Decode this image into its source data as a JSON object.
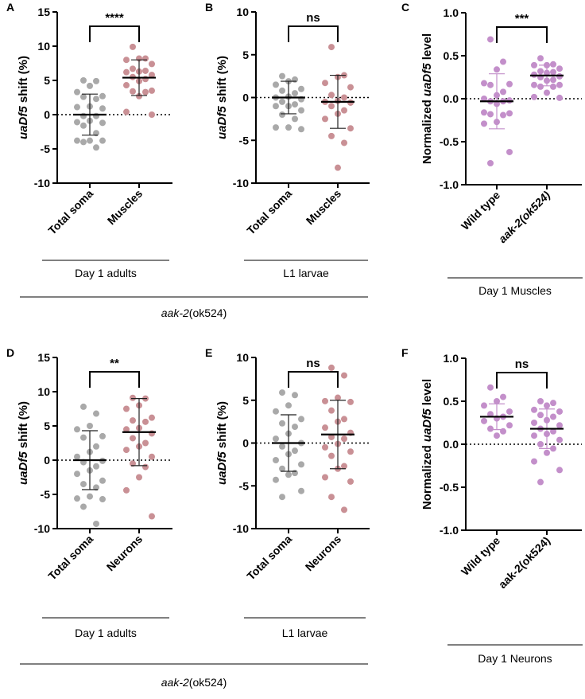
{
  "colors": {
    "gray": "#a9a9a9",
    "rose": "#c99095",
    "purple": "#c38fca",
    "axis": "#000000"
  },
  "group_labels": {
    "top_a": "Day 1 adults",
    "top_b": "L1 larvae",
    "top_c": "Day 1 Muscles",
    "top_span": [
      {
        "text": "aak-2",
        "italic": true
      },
      {
        "text": "(ok524)",
        "italic": false
      }
    ],
    "bottom_d": "Day 1 adults",
    "bottom_e": "L1 larvae",
    "bottom_f": "Day 1 Neurons",
    "bottom_span": [
      {
        "text": "aak-2",
        "italic": true
      },
      {
        "text": "(ok524)",
        "italic": false
      }
    ]
  },
  "chart_data": [
    {
      "panel": "A",
      "type": "scatter",
      "ylabel": [
        {
          "text": "uaDf5",
          "italic": true
        },
        {
          "text": " shift (%)",
          "italic": false
        }
      ],
      "ylim": [
        -10,
        15
      ],
      "yticks": [
        -10,
        -5,
        0,
        5,
        10,
        15
      ],
      "ytick_labels": [
        "-10",
        "-5",
        "0",
        "5",
        "10",
        "15"
      ],
      "reference_line": 0,
      "significance": "****",
      "groups": [
        {
          "label": [
            {
              "text": "Total soma",
              "italic": false
            }
          ],
          "color": "gray",
          "mean": 0,
          "sd": 3.0,
          "values": [
            5.0,
            4.9,
            4.2,
            3.3,
            2.7,
            2.6,
            2.3,
            1.2,
            1.1,
            0.9,
            -0.2,
            -0.2,
            -0.9,
            -1.1,
            -1.2,
            -1.6,
            -2.7,
            -3.8,
            -3.8,
            -3.8,
            -4.0,
            -4.8
          ]
        },
        {
          "label": [
            {
              "text": "Muscles",
              "italic": false
            }
          ],
          "color": "rose",
          "mean": 5.4,
          "sd": 2.6,
          "values": [
            9.9,
            8.2,
            8.0,
            8.2,
            7.4,
            6.7,
            6.2,
            6.4,
            6.3,
            5.8,
            5.5,
            5.2,
            4.9,
            4.3,
            3.5,
            3.4,
            3.3,
            2.7,
            0.4,
            0.0
          ]
        }
      ]
    },
    {
      "panel": "B",
      "type": "scatter",
      "ylabel": [
        {
          "text": "uaDf5",
          "italic": true
        },
        {
          "text": " shift (%)",
          "italic": false
        }
      ],
      "ylim": [
        -10,
        10
      ],
      "yticks": [
        -10,
        -5,
        0,
        5,
        10
      ],
      "ytick_labels": [
        "-10",
        "-5",
        "0",
        "5",
        "10"
      ],
      "reference_line": 0,
      "significance": "ns",
      "groups": [
        {
          "label": [
            {
              "text": "Total soma",
              "italic": false
            }
          ],
          "color": "gray",
          "mean": 0,
          "sd": 1.9,
          "values": [
            2.5,
            2.1,
            1.9,
            1.5,
            1.0,
            0.8,
            0.5,
            0.1,
            0.0,
            -0.2,
            -0.5,
            -0.8,
            -1.0,
            -1.0,
            -1.5,
            -2.0,
            -2.5,
            -3.5,
            -3.5,
            -3.7
          ]
        },
        {
          "label": [
            {
              "text": "Muscles",
              "italic": false
            }
          ],
          "color": "rose",
          "mean": -0.5,
          "sd": 3.1,
          "values": [
            5.9,
            2.6,
            2.4,
            1.7,
            1.2,
            0.3,
            0.0,
            -0.4,
            -0.5,
            -0.6,
            -1.0,
            -1.5,
            -1.9,
            -2.5,
            -3.6,
            -4.5,
            -5.3,
            -8.2
          ]
        }
      ]
    },
    {
      "panel": "C",
      "type": "scatter",
      "ylabel": [
        {
          "text": "Normalized ",
          "italic": false
        },
        {
          "text": "uaDf5",
          "italic": true
        },
        {
          "text": " level",
          "italic": false
        }
      ],
      "ylim": [
        -1.0,
        1.0
      ],
      "yticks": [
        -1.0,
        -0.5,
        0.0,
        0.5,
        1.0
      ],
      "ytick_labels": [
        "-1.0",
        "-0.5",
        "0.0",
        "0.5",
        "1.0"
      ],
      "reference_line": 0,
      "significance": "***",
      "groups": [
        {
          "label": [
            {
              "text": "Wild type",
              "italic": false
            }
          ],
          "color": "purple",
          "mean": -0.03,
          "sd": 0.32,
          "values": [
            0.69,
            0.43,
            0.34,
            0.18,
            0.16,
            0.17,
            0.08,
            0.04,
            0.0,
            -0.02,
            -0.03,
            -0.03,
            -0.06,
            -0.16,
            -0.17,
            -0.18,
            -0.19,
            -0.27,
            -0.29,
            -0.62,
            -0.75
          ]
        },
        {
          "label": [
            {
              "text": "aak-2(ok524)",
              "italic": true
            }
          ],
          "color": "purple",
          "mean": 0.27,
          "sd": 0.12,
          "values": [
            0.47,
            0.39,
            0.4,
            0.39,
            0.35,
            0.32,
            0.31,
            0.3,
            0.28,
            0.26,
            0.25,
            0.22,
            0.21,
            0.16,
            0.16,
            0.14,
            0.14,
            0.07,
            0.02,
            0.01
          ]
        }
      ]
    },
    {
      "panel": "D",
      "type": "scatter",
      "ylabel": [
        {
          "text": "uaDf5",
          "italic": true
        },
        {
          "text": " shift (%)",
          "italic": false
        }
      ],
      "ylim": [
        -10,
        15
      ],
      "yticks": [
        -10,
        -5,
        0,
        5,
        10,
        15
      ],
      "ytick_labels": [
        "-10",
        "-5",
        "0",
        "5",
        "10",
        "15"
      ],
      "reference_line": 0,
      "significance": "**",
      "groups": [
        {
          "label": [
            {
              "text": "Total soma",
              "italic": false
            }
          ],
          "color": "gray",
          "mean": 0,
          "sd": 4.3,
          "values": [
            7.8,
            6.8,
            5.0,
            4.5,
            3.5,
            3.3,
            2.0,
            1.2,
            0.5,
            -0.1,
            -0.3,
            -0.9,
            -1.5,
            -2.0,
            -3.0,
            -3.5,
            -4.0,
            -5.3,
            -5.6,
            -5.7,
            -6.8,
            -9.3
          ]
        },
        {
          "label": [
            {
              "text": "Neurons",
              "italic": false
            }
          ],
          "color": "rose",
          "mean": 4.1,
          "sd": 4.9,
          "values": [
            9.1,
            9.0,
            8.0,
            7.5,
            6.2,
            5.8,
            5.6,
            4.7,
            4.5,
            3.9,
            3.2,
            2.5,
            2.0,
            1.5,
            0.5,
            -0.5,
            -1.0,
            -2.5,
            -4.4,
            -8.2
          ]
        }
      ]
    },
    {
      "panel": "E",
      "type": "scatter",
      "ylabel": [
        {
          "text": "uaDf5",
          "italic": true
        },
        {
          "text": " shift (%)",
          "italic": false
        }
      ],
      "ylim": [
        -10,
        10
      ],
      "yticks": [
        -10,
        -5,
        0,
        5,
        10
      ],
      "ytick_labels": [
        "-10",
        "-5",
        "0",
        "5",
        "10"
      ],
      "reference_line": 0,
      "significance": "ns",
      "groups": [
        {
          "label": [
            {
              "text": "Total soma",
              "italic": false
            }
          ],
          "color": "gray",
          "mean": 0,
          "sd": 3.3,
          "values": [
            5.9,
            5.6,
            4.4,
            3.7,
            2.8,
            2.3,
            1.9,
            1.1,
            0.5,
            0.0,
            -0.4,
            -0.9,
            -1.3,
            -2.0,
            -2.5,
            -3.0,
            -3.5,
            -3.7,
            -4.3,
            -5.6,
            -6.3
          ]
        },
        {
          "label": [
            {
              "text": "Neurons",
              "italic": false
            }
          ],
          "color": "rose",
          "mean": 1.0,
          "sd": 4.0,
          "values": [
            8.8,
            7.9,
            5.3,
            4.9,
            4.8,
            3.8,
            2.8,
            2.5,
            1.8,
            1.2,
            0.7,
            0.5,
            -0.1,
            -0.5,
            -1.0,
            -1.5,
            -2.7,
            -3.0,
            -4.0,
            -4.5,
            -6.3,
            -7.8
          ]
        }
      ]
    },
    {
      "panel": "F",
      "type": "scatter",
      "ylabel": [
        {
          "text": "Normalized ",
          "italic": false
        },
        {
          "text": "uaDf5",
          "italic": true
        },
        {
          "text": " level",
          "italic": false
        }
      ],
      "ylim": [
        -1.0,
        1.0
      ],
      "yticks": [
        -1.0,
        -0.5,
        0.0,
        0.5,
        1.0
      ],
      "ytick_labels": [
        "-1.0",
        "-0.5",
        "0.0",
        "0.5",
        "1.0"
      ],
      "reference_line": 0,
      "significance": "ns",
      "groups": [
        {
          "label": [
            {
              "text": "Wild type",
              "italic": false
            }
          ],
          "color": "purple",
          "mean": 0.32,
          "sd": 0.15,
          "values": [
            0.66,
            0.55,
            0.5,
            0.45,
            0.38,
            0.35,
            0.32,
            0.3,
            0.27,
            0.22,
            0.18,
            0.15,
            0.1
          ]
        },
        {
          "label": [
            {
              "text": "aak-2(ok524)",
              "italic": false
            }
          ],
          "color": "purple",
          "mean": 0.18,
          "sd": 0.23,
          "values": [
            0.5,
            0.48,
            0.45,
            0.4,
            0.38,
            0.34,
            0.32,
            0.28,
            0.25,
            0.22,
            0.18,
            0.15,
            0.12,
            0.1,
            0.05,
            0.0,
            -0.05,
            -0.1,
            -0.2,
            -0.3,
            -0.44
          ]
        }
      ]
    }
  ]
}
